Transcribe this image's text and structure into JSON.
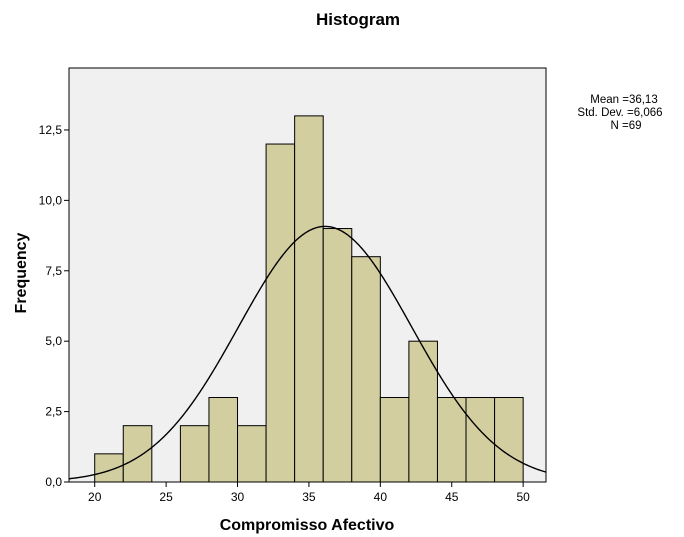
{
  "chart_data": {
    "type": "bar",
    "title": "Histogram",
    "xlabel": "Compromisso Afectivo",
    "ylabel": "Frequency",
    "bins": [
      {
        "start": 20,
        "end": 22,
        "value": 1
      },
      {
        "start": 22,
        "end": 24,
        "value": 2
      },
      {
        "start": 24,
        "end": 26,
        "value": 0
      },
      {
        "start": 26,
        "end": 28,
        "value": 2
      },
      {
        "start": 28,
        "end": 30,
        "value": 3
      },
      {
        "start": 30,
        "end": 32,
        "value": 2
      },
      {
        "start": 32,
        "end": 34,
        "value": 12
      },
      {
        "start": 34,
        "end": 36,
        "value": 13
      },
      {
        "start": 36,
        "end": 38,
        "value": 9
      },
      {
        "start": 38,
        "end": 40,
        "value": 8
      },
      {
        "start": 40,
        "end": 42,
        "value": 3
      },
      {
        "start": 42,
        "end": 44,
        "value": 5
      },
      {
        "start": 44,
        "end": 46,
        "value": 3
      },
      {
        "start": 46,
        "end": 48,
        "value": 3
      },
      {
        "start": 48,
        "end": 50,
        "value": 3
      }
    ],
    "xlim": [
      18.2,
      51.6
    ],
    "ylim": [
      0,
      14.7
    ],
    "x_ticks": [
      20,
      25,
      30,
      35,
      40,
      45,
      50
    ],
    "x_tick_labels": [
      "20",
      "25",
      "30",
      "35",
      "40",
      "45",
      "50"
    ],
    "y_ticks": [
      0,
      2.5,
      5,
      7.5,
      10,
      12.5
    ],
    "y_tick_labels": [
      "0,0",
      "2,5",
      "5,0",
      "7,5",
      "10,0",
      "12,5"
    ],
    "normal_curve": {
      "mean": 36.13,
      "std_dev": 6.066,
      "n": 69,
      "bin_width": 2
    },
    "stats_lines": [
      "Mean =36,13",
      "Std. Dev. =6,066",
      "N =69"
    ],
    "grid": false,
    "legend": "none",
    "colors": {
      "bar_fill": "#d3cea0",
      "bar_stroke": "#000000",
      "plot_background": "#f0f0f0",
      "curve": "#000000"
    }
  }
}
